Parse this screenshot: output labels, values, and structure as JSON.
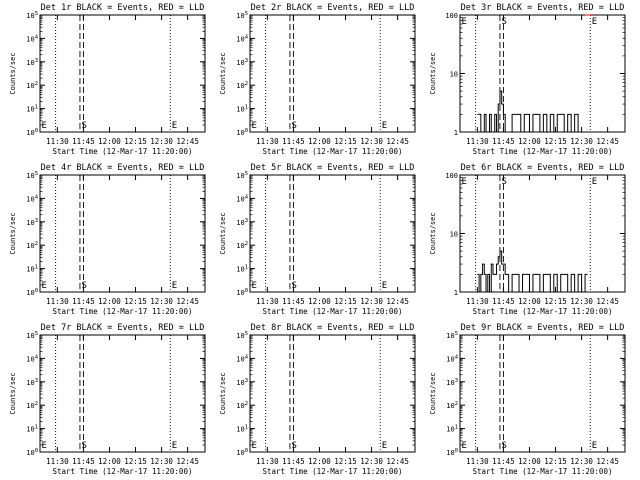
{
  "figure": {
    "xlabel": "Start Time (12-Mar-17 11:20:00)",
    "ylabel": "Counts/sec"
  },
  "chart_data": [
    {
      "type": "line",
      "title": "Det 1r BLACK = Events, RED = LLD",
      "xlabel": "Start Time (12-Mar-17 11:20:00)",
      "ylabel": "Counts/sec",
      "yscale": "log",
      "xlim": [
        "11:20",
        "12:55"
      ],
      "ylim": [
        1,
        100000
      ],
      "x_ticks": [
        "11:30",
        "11:45",
        "12:00",
        "12:15",
        "12:30",
        "12:45"
      ],
      "y_ticks": [
        "10^0",
        "10^1",
        "10^2",
        "10^3",
        "10^4",
        "10^5"
      ],
      "markers": [
        {
          "label": "E",
          "time": "11:20",
          "style": "dotted"
        },
        {
          "label": "",
          "time": "11:29",
          "style": "dotted"
        },
        {
          "label": "S",
          "time": "11:43",
          "style": "dashed"
        },
        {
          "label": "",
          "time": "11:45",
          "style": "dashed"
        },
        {
          "label": "E",
          "time": "12:35",
          "style": "dotted"
        }
      ],
      "series": []
    },
    {
      "type": "line",
      "title": "Det 2r BLACK = Events, RED = LLD",
      "xlabel": "Start Time (12-Mar-17 11:20:00)",
      "ylabel": "Counts/sec",
      "yscale": "log",
      "xlim": [
        "11:20",
        "12:55"
      ],
      "ylim": [
        1,
        100000
      ],
      "x_ticks": [
        "11:30",
        "11:45",
        "12:00",
        "12:15",
        "12:30",
        "12:45"
      ],
      "y_ticks": [
        "10^0",
        "10^1",
        "10^2",
        "10^3",
        "10^4",
        "10^5"
      ],
      "markers": [
        {
          "label": "E",
          "time": "11:20",
          "style": "dotted"
        },
        {
          "label": "",
          "time": "11:29",
          "style": "dotted"
        },
        {
          "label": "S",
          "time": "11:43",
          "style": "dashed"
        },
        {
          "label": "",
          "time": "11:45",
          "style": "dashed"
        },
        {
          "label": "E",
          "time": "12:35",
          "style": "dotted"
        }
      ],
      "series": []
    },
    {
      "type": "line",
      "title": "Det 3r BLACK = Events, RED = LLD",
      "xlabel": "Start Time (12-Mar-17 11:20:00)",
      "ylabel": "Counts/sec",
      "yscale": "log",
      "xlim": [
        "11:20",
        "12:55"
      ],
      "ylim": [
        1,
        100
      ],
      "x_ticks": [
        "11:30",
        "11:45",
        "12:00",
        "12:15",
        "12:30",
        "12:45"
      ],
      "y_ticks": [
        "1",
        "10",
        "100"
      ],
      "markers": [
        {
          "label": "E",
          "time": "11:20",
          "style": "dotted"
        },
        {
          "label": "",
          "time": "11:29",
          "style": "dotted"
        },
        {
          "label": "S",
          "time": "11:43",
          "style": "dashed"
        },
        {
          "label": "",
          "time": "11:45",
          "style": "dashed"
        },
        {
          "label": "E",
          "time": "12:35",
          "style": "dotted"
        }
      ],
      "series": [
        {
          "name": "Events",
          "color": "#000000",
          "x": [
            "11:30",
            "11:32",
            "11:34",
            "11:35",
            "11:37",
            "11:38",
            "11:40",
            "11:41",
            "11:42",
            "11:43",
            "11:44",
            "11:45",
            "11:46",
            "11:48",
            "11:50",
            "11:55",
            "11:57",
            "12:00",
            "12:02",
            "12:04",
            "12:06",
            "12:08",
            "12:10",
            "12:12",
            "12:14",
            "12:16",
            "12:18",
            "12:20",
            "12:22",
            "12:24",
            "12:26",
            "12:28",
            "12:30"
          ],
          "y": [
            2,
            1,
            2,
            1,
            2,
            1,
            2,
            1,
            3,
            5,
            3,
            2,
            1,
            1,
            2,
            1,
            2,
            1,
            2,
            2,
            1,
            2,
            1,
            2,
            1,
            2,
            2,
            1,
            2,
            1,
            2,
            1,
            1
          ]
        },
        {
          "name": "LLD",
          "color": "#ff0000",
          "x": [
            "12:32",
            "12:34"
          ],
          "y": [
            100,
            100
          ]
        }
      ]
    },
    {
      "type": "line",
      "title": "Det 4r BLACK = Events, RED = LLD",
      "xlabel": "Start Time (12-Mar-17 11:20:00)",
      "ylabel": "Counts/sec",
      "yscale": "log",
      "xlim": [
        "11:20",
        "12:55"
      ],
      "ylim": [
        1,
        100000
      ],
      "x_ticks": [
        "11:30",
        "11:45",
        "12:00",
        "12:15",
        "12:30",
        "12:45"
      ],
      "y_ticks": [
        "10^0",
        "10^1",
        "10^2",
        "10^3",
        "10^4",
        "10^5"
      ],
      "markers": [
        {
          "label": "E",
          "time": "11:20",
          "style": "dotted"
        },
        {
          "label": "",
          "time": "11:29",
          "style": "dotted"
        },
        {
          "label": "S",
          "time": "11:43",
          "style": "dashed"
        },
        {
          "label": "",
          "time": "11:45",
          "style": "dashed"
        },
        {
          "label": "E",
          "time": "12:35",
          "style": "dotted"
        }
      ],
      "series": []
    },
    {
      "type": "line",
      "title": "Det 5r BLACK = Events, RED = LLD",
      "xlabel": "Start Time (12-Mar-17 11:20:00)",
      "ylabel": "Counts/sec",
      "yscale": "log",
      "xlim": [
        "11:20",
        "12:55"
      ],
      "ylim": [
        1,
        100000
      ],
      "x_ticks": [
        "11:30",
        "11:45",
        "12:00",
        "12:15",
        "12:30",
        "12:45"
      ],
      "y_ticks": [
        "10^0",
        "10^1",
        "10^2",
        "10^3",
        "10^4",
        "10^5"
      ],
      "markers": [
        {
          "label": "E",
          "time": "11:20",
          "style": "dotted"
        },
        {
          "label": "",
          "time": "11:29",
          "style": "dotted"
        },
        {
          "label": "S",
          "time": "11:43",
          "style": "dashed"
        },
        {
          "label": "",
          "time": "11:45",
          "style": "dashed"
        },
        {
          "label": "E",
          "time": "12:35",
          "style": "dotted"
        }
      ],
      "series": []
    },
    {
      "type": "line",
      "title": "Det 6r BLACK = Events, RED = LLD",
      "xlabel": "Start Time (12-Mar-17 11:20:00)",
      "ylabel": "Counts/sec",
      "yscale": "log",
      "xlim": [
        "11:20",
        "12:55"
      ],
      "ylim": [
        1,
        100
      ],
      "x_ticks": [
        "11:30",
        "11:45",
        "12:00",
        "12:15",
        "12:30",
        "12:45"
      ],
      "y_ticks": [
        "1",
        "10",
        "100"
      ],
      "markers": [
        {
          "label": "E",
          "time": "11:20",
          "style": "dotted"
        },
        {
          "label": "",
          "time": "11:29",
          "style": "dotted"
        },
        {
          "label": "S",
          "time": "11:43",
          "style": "dashed"
        },
        {
          "label": "",
          "time": "11:45",
          "style": "dashed"
        },
        {
          "label": "E",
          "time": "12:35",
          "style": "dotted"
        }
      ],
      "series": [
        {
          "name": "Events",
          "color": "#000000",
          "x": [
            "11:30",
            "11:31",
            "11:32",
            "11:33",
            "11:34",
            "11:35",
            "11:36",
            "11:37",
            "11:38",
            "11:39",
            "11:40",
            "11:41",
            "11:42",
            "11:43",
            "11:44",
            "11:45",
            "11:46",
            "11:47",
            "11:48",
            "11:50",
            "11:52",
            "11:54",
            "11:56",
            "11:58",
            "12:00",
            "12:02",
            "12:04",
            "12:06",
            "12:08",
            "12:10",
            "12:12",
            "12:14",
            "12:16",
            "12:18",
            "12:20",
            "12:22",
            "12:24",
            "12:26",
            "12:28",
            "12:30",
            "12:32"
          ],
          "y": [
            2,
            1,
            2,
            3,
            2,
            1,
            2,
            1,
            3,
            2,
            2,
            3,
            4,
            5,
            3,
            3,
            2,
            2,
            1,
            2,
            2,
            1,
            2,
            2,
            1,
            2,
            2,
            1,
            2,
            2,
            1,
            2,
            1,
            2,
            2,
            1,
            2,
            1,
            2,
            1,
            2
          ]
        }
      ]
    },
    {
      "type": "line",
      "title": "Det 7r BLACK = Events, RED = LLD",
      "xlabel": "Start Time (12-Mar-17 11:20:00)",
      "ylabel": "Counts/sec",
      "yscale": "log",
      "xlim": [
        "11:20",
        "12:55"
      ],
      "ylim": [
        1,
        100000
      ],
      "x_ticks": [
        "11:30",
        "11:45",
        "12:00",
        "12:15",
        "12:30",
        "12:45"
      ],
      "y_ticks": [
        "10^0",
        "10^1",
        "10^2",
        "10^3",
        "10^4",
        "10^5"
      ],
      "markers": [
        {
          "label": "E",
          "time": "11:20",
          "style": "dotted"
        },
        {
          "label": "",
          "time": "11:29",
          "style": "dotted"
        },
        {
          "label": "S",
          "time": "11:43",
          "style": "dashed"
        },
        {
          "label": "",
          "time": "11:45",
          "style": "dashed"
        },
        {
          "label": "E",
          "time": "12:35",
          "style": "dotted"
        }
      ],
      "series": []
    },
    {
      "type": "line",
      "title": "Det 8r BLACK = Events, RED = LLD",
      "xlabel": "Start Time (12-Mar-17 11:20:00)",
      "ylabel": "Counts/sec",
      "yscale": "log",
      "xlim": [
        "11:20",
        "12:55"
      ],
      "ylim": [
        1,
        100000
      ],
      "x_ticks": [
        "11:30",
        "11:45",
        "12:00",
        "12:15",
        "12:30",
        "12:45"
      ],
      "y_ticks": [
        "10^0",
        "10^1",
        "10^2",
        "10^3",
        "10^4",
        "10^5"
      ],
      "markers": [
        {
          "label": "E",
          "time": "11:20",
          "style": "dotted"
        },
        {
          "label": "",
          "time": "11:29",
          "style": "dotted"
        },
        {
          "label": "S",
          "time": "11:43",
          "style": "dashed"
        },
        {
          "label": "",
          "time": "11:45",
          "style": "dashed"
        },
        {
          "label": "E",
          "time": "12:35",
          "style": "dotted"
        }
      ],
      "series": []
    },
    {
      "type": "line",
      "title": "Det 9r BLACK = Events, RED = LLD",
      "xlabel": "Start Time (12-Mar-17 11:20:00)",
      "ylabel": "Counts/sec",
      "yscale": "log",
      "xlim": [
        "11:20",
        "12:55"
      ],
      "ylim": [
        1,
        100000
      ],
      "x_ticks": [
        "11:30",
        "11:45",
        "12:00",
        "12:15",
        "12:30",
        "12:45"
      ],
      "y_ticks": [
        "10^0",
        "10^1",
        "10^2",
        "10^3",
        "10^4",
        "10^5"
      ],
      "markers": [
        {
          "label": "E",
          "time": "11:20",
          "style": "dotted"
        },
        {
          "label": "",
          "time": "11:29",
          "style": "dotted"
        },
        {
          "label": "S",
          "time": "11:43",
          "style": "dashed"
        },
        {
          "label": "",
          "time": "11:45",
          "style": "dashed"
        },
        {
          "label": "E",
          "time": "12:35",
          "style": "dotted"
        }
      ],
      "series": []
    }
  ]
}
